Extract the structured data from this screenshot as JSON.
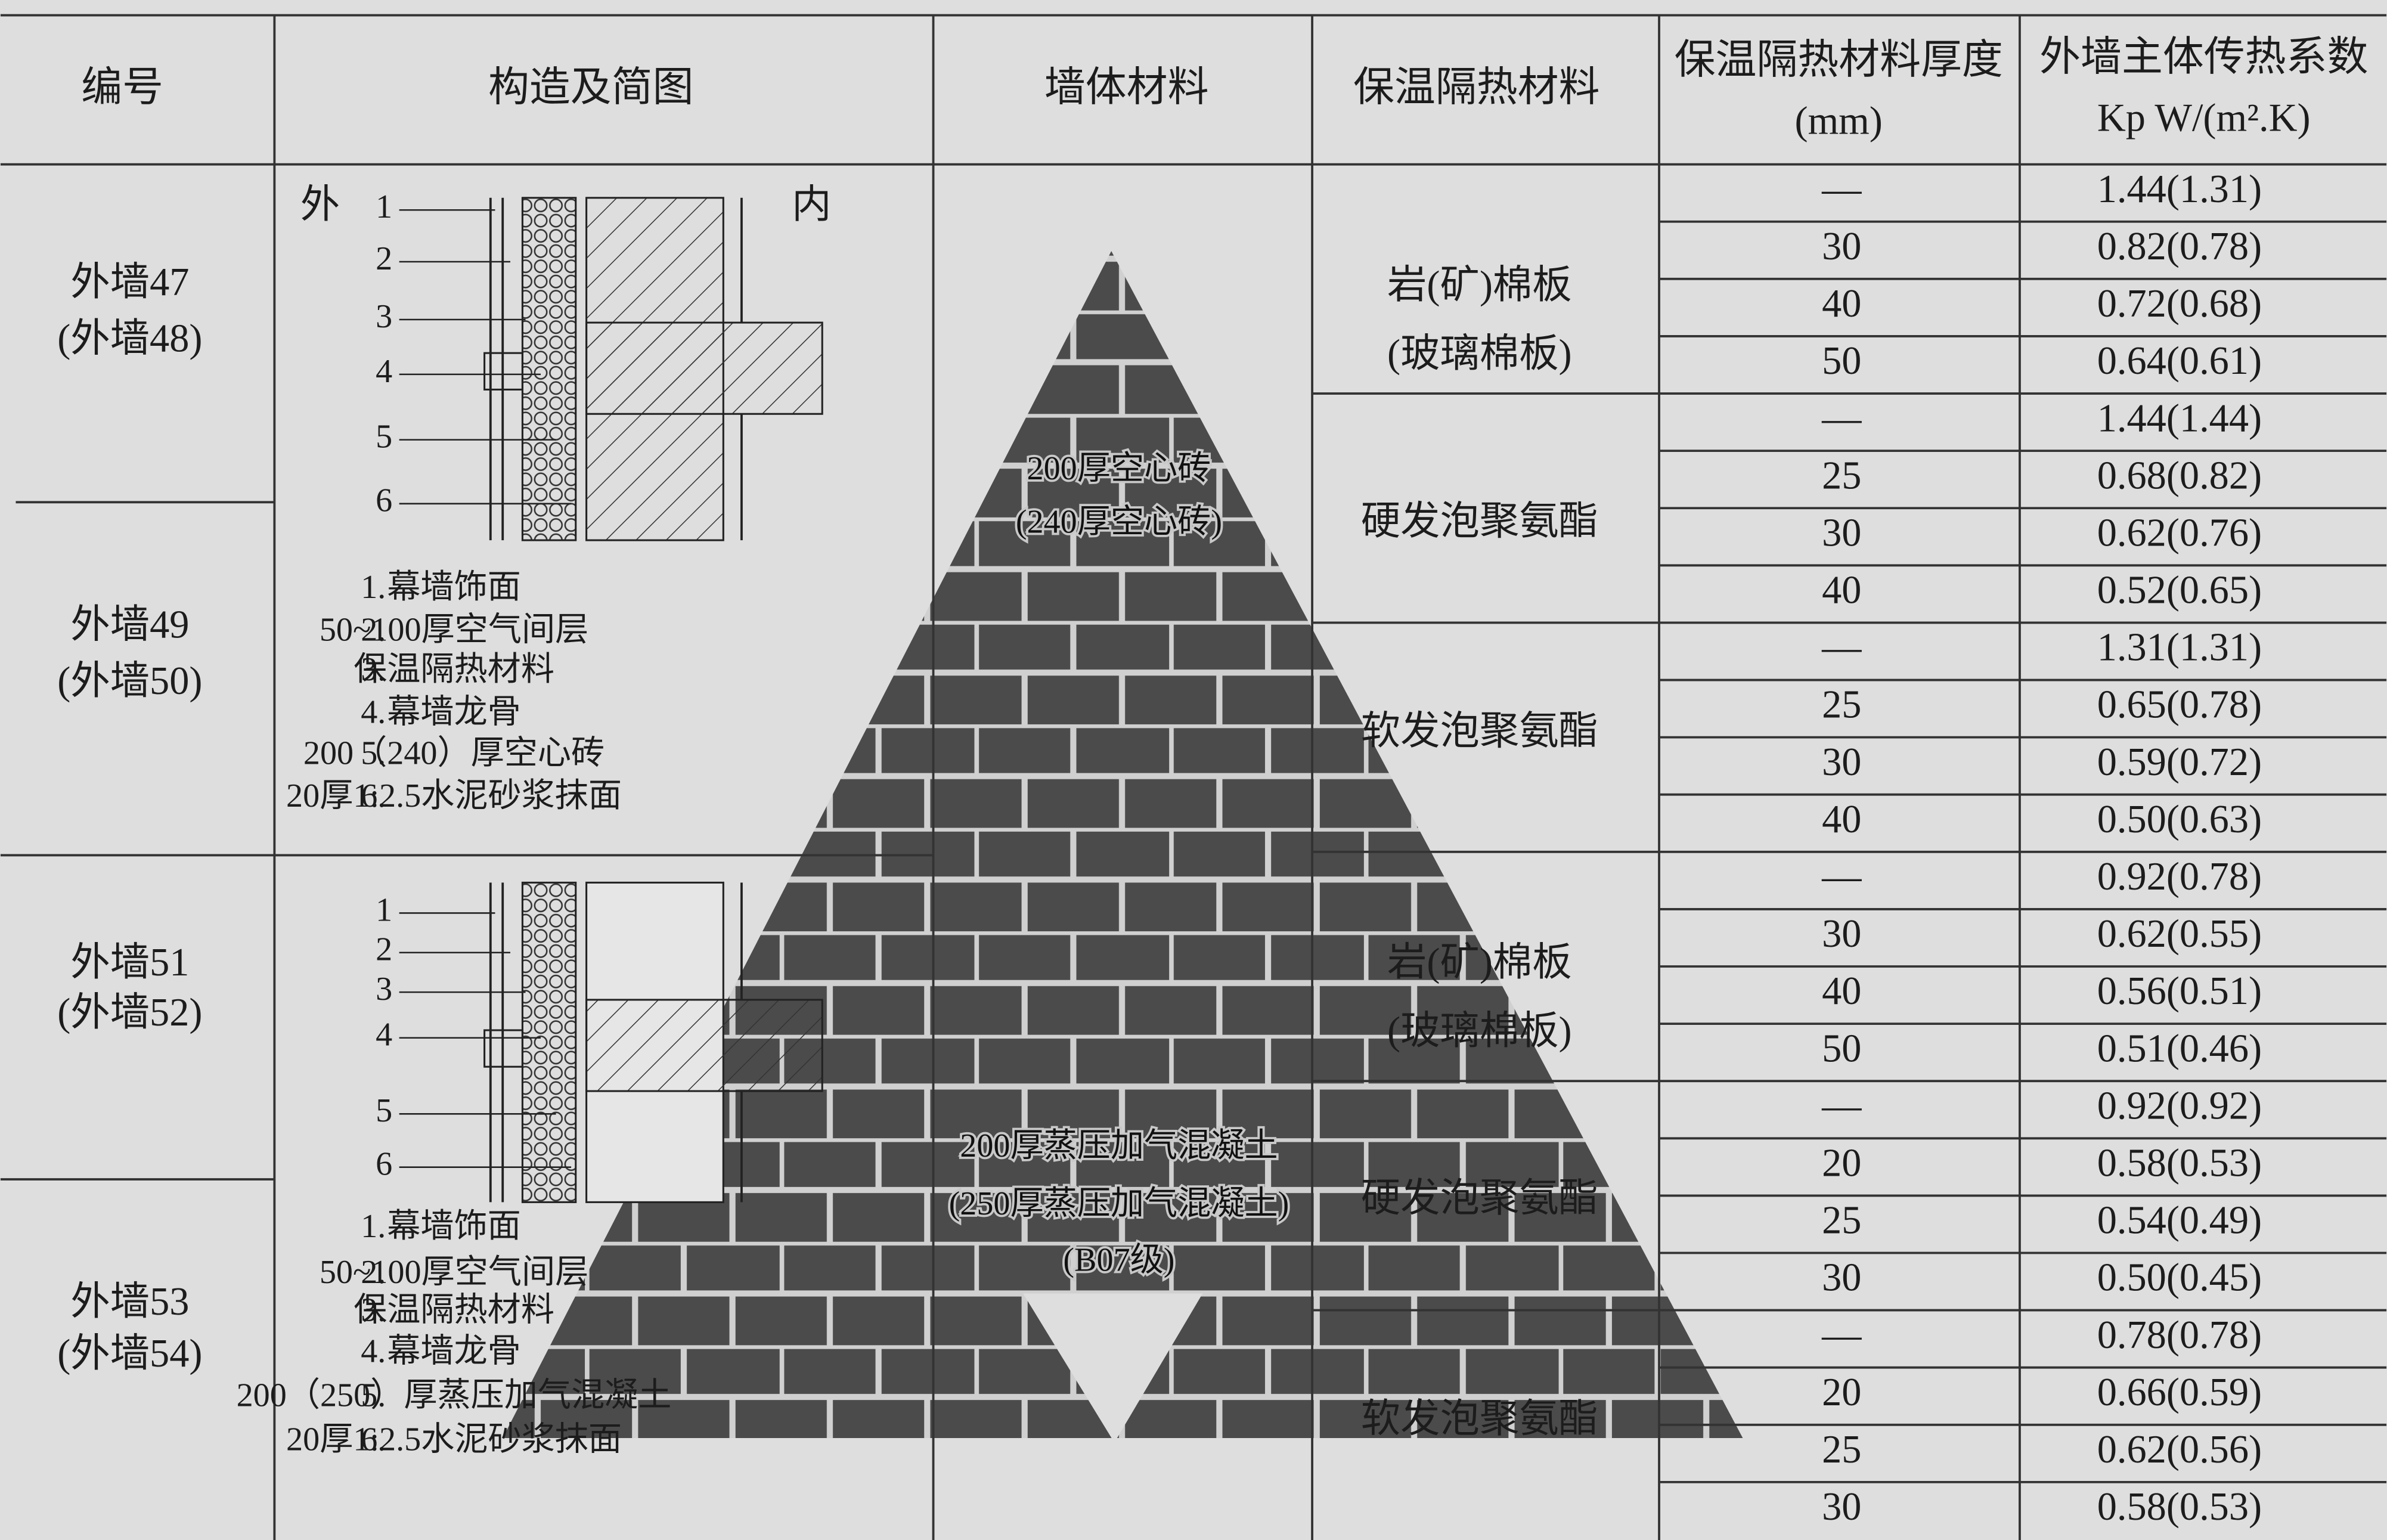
{
  "header": {
    "columns": [
      "编号",
      "构造及简图",
      "墙体材料",
      "保温隔热材料",
      "保温隔热材料厚度",
      "外墙主体传热系数"
    ],
    "units": [
      "(mm)",
      "Kp W/(m².K)"
    ]
  },
  "codes": [
    [
      "外墙47",
      "(外墙48)"
    ],
    [
      "外墙49",
      "(外墙50)"
    ],
    [
      "外墙51",
      "(外墙52)"
    ],
    [
      "外墙53",
      "(外墙54)"
    ]
  ],
  "diagrams": [
    {
      "side_labels": [
        "外",
        "内"
      ],
      "markers": [
        "1",
        "2",
        "3",
        "4",
        "5",
        "6"
      ],
      "legend": [
        {
          "n": "1.",
          "text": "幕墙饰面"
        },
        {
          "n": "2.",
          "text": "50~100厚空气间层"
        },
        {
          "n": "3.",
          "text": "保温隔热材料"
        },
        {
          "n": "4.",
          "text": "幕墙龙骨"
        },
        {
          "n": "5.",
          "text": "200（240）厚空心砖"
        },
        {
          "n": "6.",
          "text": "20厚1:2.5水泥砂浆抹面"
        }
      ]
    },
    {
      "markers": [
        "1",
        "2",
        "3",
        "4",
        "5",
        "6"
      ],
      "legend": [
        {
          "n": "1.",
          "text": "幕墙饰面"
        },
        {
          "n": "2.",
          "text": "50~100厚空气间层"
        },
        {
          "n": "3.",
          "text": "保温隔热材料"
        },
        {
          "n": "4.",
          "text": "幕墙龙骨"
        },
        {
          "n": "5.",
          "text": "200（250）厚蒸压加气混凝土"
        },
        {
          "n": "6.",
          "text": "20厚1:2.5水泥砂浆抹面"
        }
      ]
    }
  ],
  "wall_materials": [
    [
      "200厚空心砖",
      "(240厚空心砖)"
    ],
    [
      "200厚蒸压加气混凝土",
      "(250厚蒸压加气混凝土)",
      "(B07级)"
    ]
  ],
  "insulation": [
    [
      "岩(矿)棉板",
      "(玻璃棉板)"
    ],
    [
      "硬发泡聚氨酯"
    ],
    [
      "软发泡聚氨酯"
    ],
    [
      "岩(矿)棉板",
      "(玻璃棉板)"
    ],
    [
      "硬发泡聚氨酯"
    ],
    [
      "软发泡聚氨酯"
    ]
  ],
  "rows": [
    [
      "—",
      "1.44(1.31)"
    ],
    [
      "30",
      "0.82(0.78)"
    ],
    [
      "40",
      "0.72(0.68)"
    ],
    [
      "50",
      "0.64(0.61)"
    ],
    [
      "—",
      "1.44(1.44)"
    ],
    [
      "25",
      "0.68(0.82)"
    ],
    [
      "30",
      "0.62(0.76)"
    ],
    [
      "40",
      "0.52(0.65)"
    ],
    [
      "—",
      "1.31(1.31)"
    ],
    [
      "25",
      "0.65(0.78)"
    ],
    [
      "30",
      "0.59(0.72)"
    ],
    [
      "40",
      "0.50(0.63)"
    ],
    [
      "—",
      "0.92(0.78)"
    ],
    [
      "30",
      "0.62(0.55)"
    ],
    [
      "40",
      "0.56(0.51)"
    ],
    [
      "50",
      "0.51(0.46)"
    ],
    [
      "—",
      "0.92(0.92)"
    ],
    [
      "20",
      "0.58(0.53)"
    ],
    [
      "25",
      "0.54(0.49)"
    ],
    [
      "30",
      "0.50(0.45)"
    ],
    [
      "—",
      "0.78(0.78)"
    ],
    [
      "20",
      "0.66(0.59)"
    ],
    [
      "25",
      "0.62(0.56)"
    ],
    [
      "30",
      "0.58(0.53)"
    ]
  ]
}
